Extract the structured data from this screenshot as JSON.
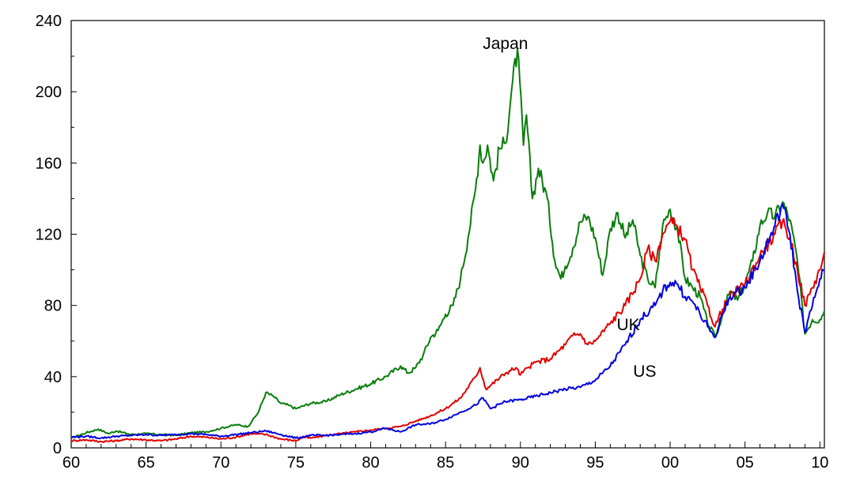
{
  "chart_data": {
    "type": "line",
    "title": "",
    "xlabel": "",
    "ylabel": "",
    "xlim": [
      1960,
      2010.3
    ],
    "ylim": [
      0,
      240
    ],
    "grid": false,
    "legend": "none",
    "x_tick_values": [
      1960,
      1965,
      1970,
      1975,
      1980,
      1985,
      1990,
      1995,
      2000,
      2005,
      2010
    ],
    "x_tick_labels": [
      "60",
      "65",
      "70",
      "75",
      "80",
      "85",
      "90",
      "95",
      "00",
      "05",
      "10"
    ],
    "y_ticks": [
      0,
      40,
      80,
      120,
      160,
      200,
      240
    ],
    "y_tick_labels": [
      "0",
      "40",
      "80",
      "120",
      "160",
      "200",
      "240"
    ],
    "series": [
      {
        "name": "Japan",
        "color": "#0a7d0a",
        "label_at": [
          1989.0,
          224
        ],
        "points": [
          [
            1960,
            5.5
          ],
          [
            1961,
            8.5
          ],
          [
            1961.8,
            10.5
          ],
          [
            1962.5,
            8
          ],
          [
            1963,
            9.5
          ],
          [
            1964,
            7.5
          ],
          [
            1965,
            8
          ],
          [
            1966,
            7.5
          ],
          [
            1967,
            7
          ],
          [
            1968,
            8.5
          ],
          [
            1969,
            9
          ],
          [
            1970,
            11
          ],
          [
            1971,
            13
          ],
          [
            1971.8,
            12
          ],
          [
            1972.5,
            20
          ],
          [
            1973,
            31
          ],
          [
            1973.5,
            29
          ],
          [
            1974,
            25
          ],
          [
            1974.5,
            24
          ],
          [
            1975,
            22
          ],
          [
            1976,
            25
          ],
          [
            1977,
            26
          ],
          [
            1978,
            30
          ],
          [
            1979,
            33
          ],
          [
            1980,
            36
          ],
          [
            1981,
            40
          ],
          [
            1982,
            46
          ],
          [
            1982.5,
            42
          ],
          [
            1983,
            45
          ],
          [
            1983.5,
            52
          ],
          [
            1984,
            62
          ],
          [
            1984.5,
            66
          ],
          [
            1985,
            75
          ],
          [
            1985.5,
            80
          ],
          [
            1986,
            95
          ],
          [
            1986.5,
            118
          ],
          [
            1987,
            145
          ],
          [
            1987.3,
            170
          ],
          [
            1987.5,
            160
          ],
          [
            1987.8,
            170
          ],
          [
            1988.2,
            150
          ],
          [
            1988.6,
            168
          ],
          [
            1989,
            171
          ],
          [
            1989.4,
            200
          ],
          [
            1989.8,
            224
          ],
          [
            1990.2,
            170
          ],
          [
            1990.4,
            187
          ],
          [
            1990.8,
            140
          ],
          [
            1991.2,
            157
          ],
          [
            1991.8,
            140
          ],
          [
            1992.3,
            105
          ],
          [
            1992.7,
            95
          ],
          [
            1993,
            102
          ],
          [
            1993.5,
            112
          ],
          [
            1994,
            127
          ],
          [
            1994.5,
            130
          ],
          [
            1995,
            118
          ],
          [
            1995.5,
            97
          ],
          [
            1996,
            123
          ],
          [
            1996.5,
            132
          ],
          [
            1997,
            118
          ],
          [
            1997.5,
            128
          ],
          [
            1998,
            108
          ],
          [
            1998.5,
            95
          ],
          [
            1999,
            90
          ],
          [
            1999.5,
            125
          ],
          [
            2000,
            134
          ],
          [
            2000.5,
            122
          ],
          [
            2001,
            95
          ],
          [
            2001.5,
            90
          ],
          [
            2002,
            85
          ],
          [
            2002.5,
            70
          ],
          [
            2003,
            62
          ],
          [
            2003.5,
            75
          ],
          [
            2004,
            88
          ],
          [
            2004.5,
            83
          ],
          [
            2005,
            92
          ],
          [
            2005.5,
            105
          ],
          [
            2006,
            125
          ],
          [
            2006.5,
            132
          ],
          [
            2007,
            130
          ],
          [
            2007.5,
            138
          ],
          [
            2008,
            128
          ],
          [
            2008.5,
            105
          ],
          [
            2009,
            64
          ],
          [
            2009.5,
            72
          ],
          [
            2010,
            72
          ],
          [
            2010.3,
            77
          ]
        ]
      },
      {
        "name": "UK",
        "color": "#e00000",
        "label_at": [
          1997.2,
          66
        ],
        "points": [
          [
            1960,
            4
          ],
          [
            1961,
            4.5
          ],
          [
            1962,
            3.5
          ],
          [
            1963,
            4
          ],
          [
            1964,
            5
          ],
          [
            1965,
            4.5
          ],
          [
            1966,
            4
          ],
          [
            1967,
            5
          ],
          [
            1968,
            6.5
          ],
          [
            1969,
            6
          ],
          [
            1970,
            5
          ],
          [
            1971,
            6
          ],
          [
            1972,
            8
          ],
          [
            1973,
            7.5
          ],
          [
            1974,
            5
          ],
          [
            1975,
            4
          ],
          [
            1975.5,
            6
          ],
          [
            1976,
            5.5
          ],
          [
            1977,
            7
          ],
          [
            1978,
            8
          ],
          [
            1979,
            9
          ],
          [
            1980,
            10
          ],
          [
            1981,
            11
          ],
          [
            1982,
            12
          ],
          [
            1983,
            15
          ],
          [
            1984,
            18
          ],
          [
            1985,
            22
          ],
          [
            1986,
            28
          ],
          [
            1987,
            40
          ],
          [
            1987.3,
            45
          ],
          [
            1987.7,
            33
          ],
          [
            1988,
            35
          ],
          [
            1989,
            42
          ],
          [
            1989.7,
            45
          ],
          [
            1990,
            41
          ],
          [
            1990.5,
            45
          ],
          [
            1991,
            48
          ],
          [
            1992,
            50
          ],
          [
            1993,
            58
          ],
          [
            1993.5,
            63
          ],
          [
            1994,
            64
          ],
          [
            1994.5,
            58
          ],
          [
            1995,
            60
          ],
          [
            1996,
            70
          ],
          [
            1997,
            80
          ],
          [
            1998,
            95
          ],
          [
            1998.5,
            112
          ],
          [
            1999,
            105
          ],
          [
            1999.5,
            120
          ],
          [
            2000,
            127
          ],
          [
            2000.5,
            124
          ],
          [
            2001,
            117
          ],
          [
            2001.5,
            100
          ],
          [
            2002,
            90
          ],
          [
            2002.5,
            80
          ],
          [
            2003,
            68
          ],
          [
            2003.5,
            78
          ],
          [
            2004,
            85
          ],
          [
            2005,
            92
          ],
          [
            2006,
            108
          ],
          [
            2007,
            120
          ],
          [
            2007.5,
            127
          ],
          [
            2008,
            118
          ],
          [
            2008.5,
            100
          ],
          [
            2009,
            80
          ],
          [
            2009.5,
            90
          ],
          [
            2010,
            100
          ],
          [
            2010.3,
            110
          ]
        ]
      },
      {
        "name": "US",
        "color": "#0000e0",
        "label_at": [
          1998.3,
          40
        ],
        "points": [
          [
            1960,
            6
          ],
          [
            1961,
            6.5
          ],
          [
            1962,
            5.5
          ],
          [
            1963,
            6.5
          ],
          [
            1964,
            7
          ],
          [
            1965,
            7.5
          ],
          [
            1966,
            7
          ],
          [
            1967,
            7.5
          ],
          [
            1968,
            8
          ],
          [
            1969,
            7.5
          ],
          [
            1970,
            6.5
          ],
          [
            1971,
            7.5
          ],
          [
            1972,
            8.5
          ],
          [
            1973,
            9.5
          ],
          [
            1974,
            7.5
          ],
          [
            1975,
            5.5
          ],
          [
            1976,
            7
          ],
          [
            1977,
            7
          ],
          [
            1978,
            7.5
          ],
          [
            1979,
            8
          ],
          [
            1980,
            9
          ],
          [
            1981,
            11
          ],
          [
            1982,
            9
          ],
          [
            1983,
            13
          ],
          [
            1984,
            13.5
          ],
          [
            1985,
            16
          ],
          [
            1986,
            20
          ],
          [
            1987,
            24
          ],
          [
            1987.5,
            28
          ],
          [
            1988,
            22
          ],
          [
            1989,
            26
          ],
          [
            1990,
            27
          ],
          [
            1991,
            29
          ],
          [
            1992,
            31
          ],
          [
            1993,
            33
          ],
          [
            1994,
            34
          ],
          [
            1995,
            38
          ],
          [
            1996,
            46
          ],
          [
            1997,
            58
          ],
          [
            1998,
            72
          ],
          [
            1999,
            80
          ],
          [
            1999.5,
            88
          ],
          [
            2000,
            93
          ],
          [
            2000.5,
            92
          ],
          [
            2001,
            85
          ],
          [
            2001.5,
            82
          ],
          [
            2002,
            75
          ],
          [
            2002.5,
            68
          ],
          [
            2003,
            62
          ],
          [
            2003.5,
            75
          ],
          [
            2004,
            85
          ],
          [
            2005,
            90
          ],
          [
            2006,
            105
          ],
          [
            2007,
            125
          ],
          [
            2007.5,
            137
          ],
          [
            2008,
            120
          ],
          [
            2008.5,
            88
          ],
          [
            2009,
            65
          ],
          [
            2009.5,
            80
          ],
          [
            2010,
            95
          ],
          [
            2010.3,
            100
          ]
        ]
      }
    ]
  }
}
